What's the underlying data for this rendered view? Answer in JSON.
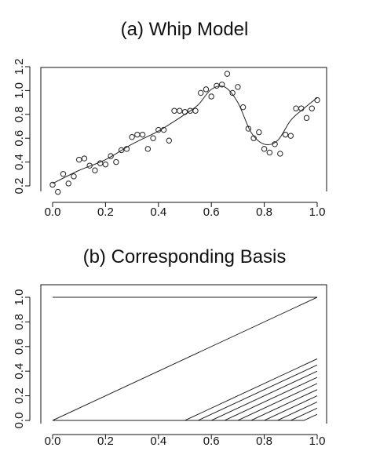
{
  "chart_data": [
    {
      "type": "scatter",
      "title": "(a) Whip Model",
      "xlabel": "",
      "ylabel": "",
      "xlim": [
        0,
        1
      ],
      "ylim": [
        0.2,
        1.2
      ],
      "x_ticks": [
        0.0,
        0.2,
        0.4,
        0.6,
        0.8,
        1.0
      ],
      "x_tick_labels": [
        "0.0",
        "0.2",
        "0.4",
        "0.6",
        "0.8",
        "1.0"
      ],
      "y_ticks": [
        0.2,
        0.4,
        0.6,
        0.8,
        1.0,
        1.2
      ],
      "y_tick_labels": [
        "0.2",
        "0.4",
        "0.6",
        "0.8",
        "1.0",
        "1.2"
      ],
      "grid": false,
      "series": [
        {
          "kind": "points",
          "x": [
            0.0,
            0.02,
            0.04,
            0.06,
            0.08,
            0.1,
            0.12,
            0.14,
            0.16,
            0.18,
            0.2,
            0.22,
            0.24,
            0.26,
            0.28,
            0.3,
            0.32,
            0.34,
            0.36,
            0.38,
            0.4,
            0.42,
            0.44,
            0.46,
            0.48,
            0.5,
            0.52,
            0.54,
            0.56,
            0.58,
            0.6,
            0.62,
            0.64,
            0.66,
            0.68,
            0.7,
            0.72,
            0.74,
            0.76,
            0.78,
            0.8,
            0.82,
            0.84,
            0.86,
            0.88,
            0.9,
            0.92,
            0.94,
            0.96,
            0.98,
            1.0
          ],
          "y": [
            0.21,
            0.15,
            0.3,
            0.22,
            0.28,
            0.42,
            0.43,
            0.37,
            0.33,
            0.39,
            0.38,
            0.45,
            0.4,
            0.5,
            0.51,
            0.61,
            0.63,
            0.63,
            0.51,
            0.6,
            0.67,
            0.67,
            0.58,
            0.83,
            0.83,
            0.82,
            0.83,
            0.83,
            0.98,
            1.01,
            0.95,
            1.04,
            1.05,
            1.14,
            0.98,
            1.03,
            0.86,
            0.68,
            0.6,
            0.65,
            0.51,
            0.48,
            0.55,
            0.47,
            0.63,
            0.62,
            0.85,
            0.85,
            0.77,
            0.85,
            0.92
          ]
        },
        {
          "kind": "line",
          "x": [
            0.0,
            0.1,
            0.2,
            0.3,
            0.4,
            0.5,
            0.55,
            0.6,
            0.65,
            0.7,
            0.75,
            0.8,
            0.85,
            0.9,
            0.95,
            1.0
          ],
          "y": [
            0.22,
            0.33,
            0.42,
            0.55,
            0.66,
            0.8,
            0.88,
            1.01,
            1.03,
            0.9,
            0.65,
            0.55,
            0.58,
            0.75,
            0.85,
            0.94
          ]
        }
      ]
    },
    {
      "type": "line",
      "title": "(b) Corresponding Basis",
      "xlabel": "",
      "ylabel": "",
      "xlim": [
        0,
        1
      ],
      "ylim": [
        0,
        1
      ],
      "x_ticks": [
        0.0,
        0.2,
        0.4,
        0.6,
        0.8,
        1.0
      ],
      "x_tick_labels": [
        "0.0",
        "0.2",
        "0.4",
        "0.6",
        "0.8",
        "1.0"
      ],
      "y_ticks": [
        0.0,
        0.2,
        0.4,
        0.6,
        0.8,
        1.0
      ],
      "y_tick_labels": [
        "0.0",
        "0.2",
        "0.4",
        "0.6",
        "0.8",
        "1.0"
      ],
      "grid": false,
      "series": [
        {
          "kind": "constant",
          "x": [
            0.0,
            1.0
          ],
          "y": [
            1.0,
            1.0
          ]
        },
        {
          "kind": "linear",
          "x": [
            0.0,
            1.0
          ],
          "y": [
            0.0,
            1.0
          ]
        },
        {
          "kind": "hinge",
          "knot": 0.5,
          "x": [
            0.0,
            0.5,
            1.0
          ],
          "y": [
            0.0,
            0.0,
            0.5
          ]
        },
        {
          "kind": "hinge",
          "knot": 0.55,
          "x": [
            0.0,
            0.55,
            1.0
          ],
          "y": [
            0.0,
            0.0,
            0.45
          ]
        },
        {
          "kind": "hinge",
          "knot": 0.6,
          "x": [
            0.0,
            0.6,
            1.0
          ],
          "y": [
            0.0,
            0.0,
            0.4
          ]
        },
        {
          "kind": "hinge",
          "knot": 0.65,
          "x": [
            0.0,
            0.65,
            1.0
          ],
          "y": [
            0.0,
            0.0,
            0.35
          ]
        },
        {
          "kind": "hinge",
          "knot": 0.7,
          "x": [
            0.0,
            0.7,
            1.0
          ],
          "y": [
            0.0,
            0.0,
            0.3
          ]
        },
        {
          "kind": "hinge",
          "knot": 0.75,
          "x": [
            0.0,
            0.75,
            1.0
          ],
          "y": [
            0.0,
            0.0,
            0.25
          ]
        },
        {
          "kind": "hinge",
          "knot": 0.8,
          "x": [
            0.0,
            0.8,
            1.0
          ],
          "y": [
            0.0,
            0.0,
            0.2
          ]
        },
        {
          "kind": "hinge",
          "knot": 0.85,
          "x": [
            0.0,
            0.85,
            1.0
          ],
          "y": [
            0.0,
            0.0,
            0.15
          ]
        },
        {
          "kind": "hinge",
          "knot": 0.9,
          "x": [
            0.0,
            0.9,
            1.0
          ],
          "y": [
            0.0,
            0.0,
            0.1
          ]
        },
        {
          "kind": "hinge",
          "knot": 0.95,
          "x": [
            0.0,
            0.95,
            1.0
          ],
          "y": [
            0.0,
            0.0,
            0.05
          ]
        }
      ]
    }
  ]
}
